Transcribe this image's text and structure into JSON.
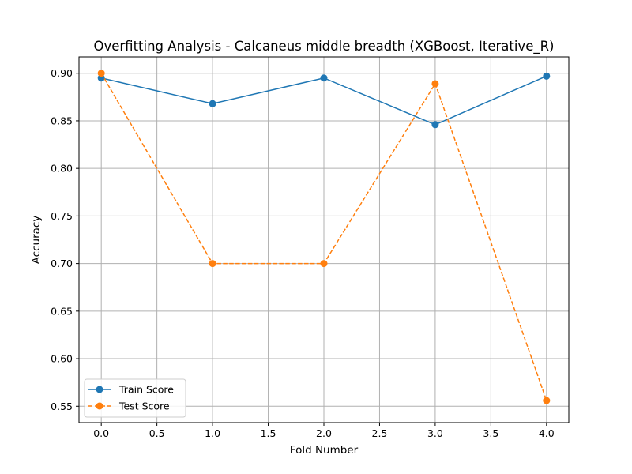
{
  "chart_data": {
    "type": "line",
    "title": "Overfitting Analysis - Calcaneus middle breadth (XGBoost, Iterative_R)",
    "xlabel": "Fold Number",
    "ylabel": "Accuracy",
    "x": [
      0,
      1,
      2,
      3,
      4
    ],
    "xlim": [
      -0.2,
      4.2
    ],
    "ylim": [
      0.5328,
      0.9172
    ],
    "xticks": [
      0.0,
      0.5,
      1.0,
      1.5,
      2.0,
      2.5,
      3.0,
      3.5,
      4.0
    ],
    "xtick_labels": [
      "0.0",
      "0.5",
      "1.0",
      "1.5",
      "2.0",
      "2.5",
      "3.0",
      "3.5",
      "4.0"
    ],
    "yticks": [
      0.55,
      0.6,
      0.65,
      0.7,
      0.75,
      0.8,
      0.85,
      0.9
    ],
    "ytick_labels": [
      "0.55",
      "0.60",
      "0.65",
      "0.70",
      "0.75",
      "0.80",
      "0.85",
      "0.90"
    ],
    "grid": true,
    "legend_position": "lower-left",
    "series": [
      {
        "name": "Train Score",
        "values": [
          0.895,
          0.868,
          0.895,
          0.846,
          0.897
        ],
        "color": "#1f77b4",
        "linestyle": "solid",
        "marker": "circle"
      },
      {
        "name": "Test Score",
        "values": [
          0.9,
          0.7,
          0.7,
          0.889,
          0.556
        ],
        "color": "#ff7f0e",
        "linestyle": "dashed",
        "marker": "circle"
      }
    ]
  }
}
